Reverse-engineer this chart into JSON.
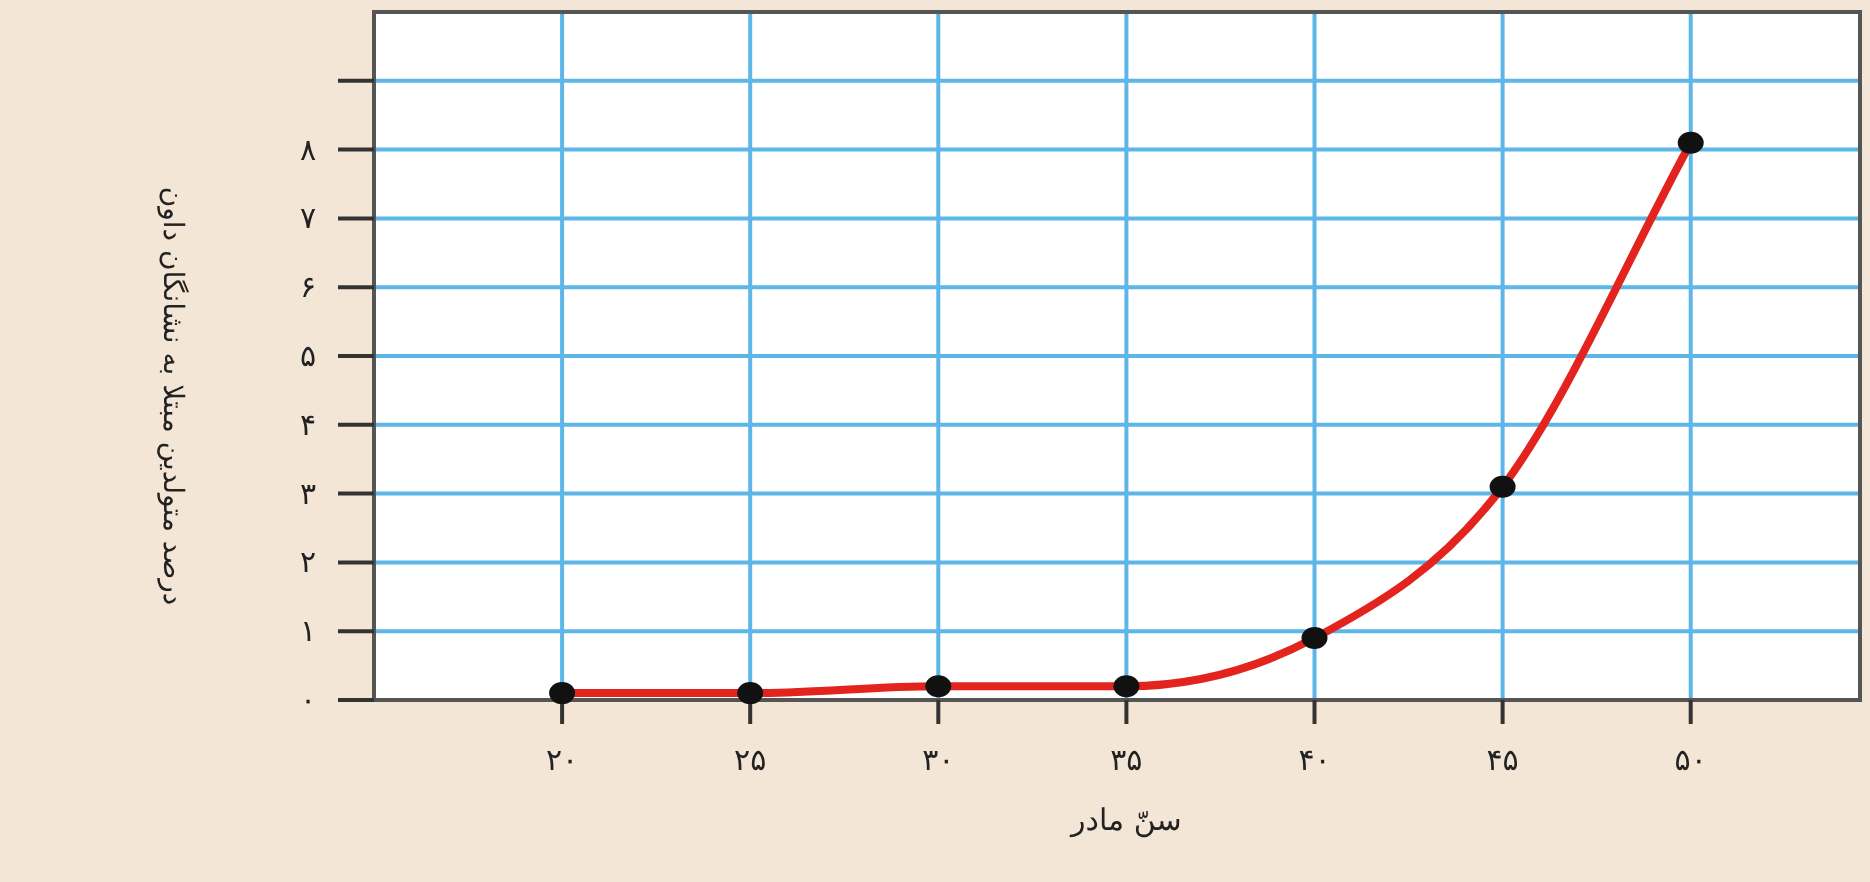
{
  "chart_data": {
    "type": "line",
    "xlabel": "سنّ مادر",
    "ylabel": "درصد متولدین مبتلا به نشانگان داون",
    "x": [
      20,
      25,
      30,
      35,
      40,
      45,
      50
    ],
    "series": [
      {
        "color": "#e3241e",
        "values": [
          0.1,
          0.1,
          0.2,
          0.2,
          0.9,
          3.1,
          8.1
        ]
      }
    ],
    "xlim": [
      15,
      54.5
    ],
    "ylim": [
      0,
      10
    ],
    "xticks": [
      {
        "value": 20,
        "label": "۲۰"
      },
      {
        "value": 25,
        "label": "۲۵"
      },
      {
        "value": 30,
        "label": "۳۰"
      },
      {
        "value": 35,
        "label": "۳۵"
      },
      {
        "value": 40,
        "label": "۴۰"
      },
      {
        "value": 45,
        "label": "۴۵"
      },
      {
        "value": 50,
        "label": "۵۰"
      }
    ],
    "yticks": [
      {
        "value": 0,
        "label": "۰"
      },
      {
        "value": 1,
        "label": "۱"
      },
      {
        "value": 2,
        "label": "۲"
      },
      {
        "value": 3,
        "label": "۳"
      },
      {
        "value": 4,
        "label": "۴"
      },
      {
        "value": 5,
        "label": "۵"
      },
      {
        "value": 6,
        "label": "۶"
      },
      {
        "value": 7,
        "label": "۷"
      },
      {
        "value": 8,
        "label": "۸"
      },
      {
        "value": 9,
        "label": null
      }
    ],
    "grid": true,
    "marker": "circle",
    "line_style": "solid"
  }
}
